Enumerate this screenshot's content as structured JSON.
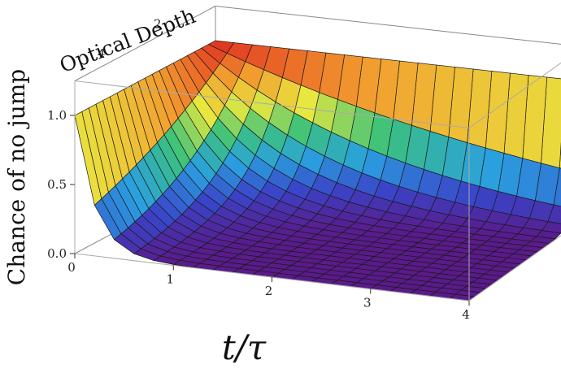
{
  "chart_data": {
    "type": "surface3d",
    "title": "",
    "xlabel": "t/τ",
    "ylabel": "Optical Depth",
    "zlabel": "Chance of no jump",
    "x_ticks": [
      "0",
      "1",
      "2",
      "3",
      "4"
    ],
    "y_ticks": [
      "0",
      "2",
      "4"
    ],
    "z_ticks": [
      "0.0",
      "0.5",
      "1.0"
    ],
    "xlim": [
      0,
      4
    ],
    "ylim": [
      0,
      5
    ],
    "zlim": [
      0,
      1
    ],
    "function": "z = exp(-d * t) for d in [0,5], t in [0,4]",
    "mesh_x_values": [
      0,
      0.2,
      0.4,
      0.6,
      0.8,
      1.0,
      1.2,
      1.4,
      1.6,
      1.8,
      2.0,
      2.2,
      2.4,
      2.6,
      2.8,
      3.0,
      3.2,
      3.4,
      3.6,
      3.8,
      4.0
    ],
    "mesh_y_values": [
      0,
      0.25,
      0.5,
      0.75,
      1.0,
      1.25,
      1.5,
      1.75,
      2.0,
      2.25,
      2.5,
      2.75,
      3.0,
      3.25,
      3.5,
      3.75,
      4.0,
      4.25,
      4.5,
      4.75,
      5.0
    ],
    "contour_levels": [
      0.25,
      0.5,
      0.75
    ],
    "colormap": [
      "#5a1a8a",
      "#3a44c8",
      "#2aa0e0",
      "#3cc27a",
      "#e8e840",
      "#f29a2e",
      "#e03020"
    ],
    "grid": false,
    "legend": "none",
    "box": true
  }
}
